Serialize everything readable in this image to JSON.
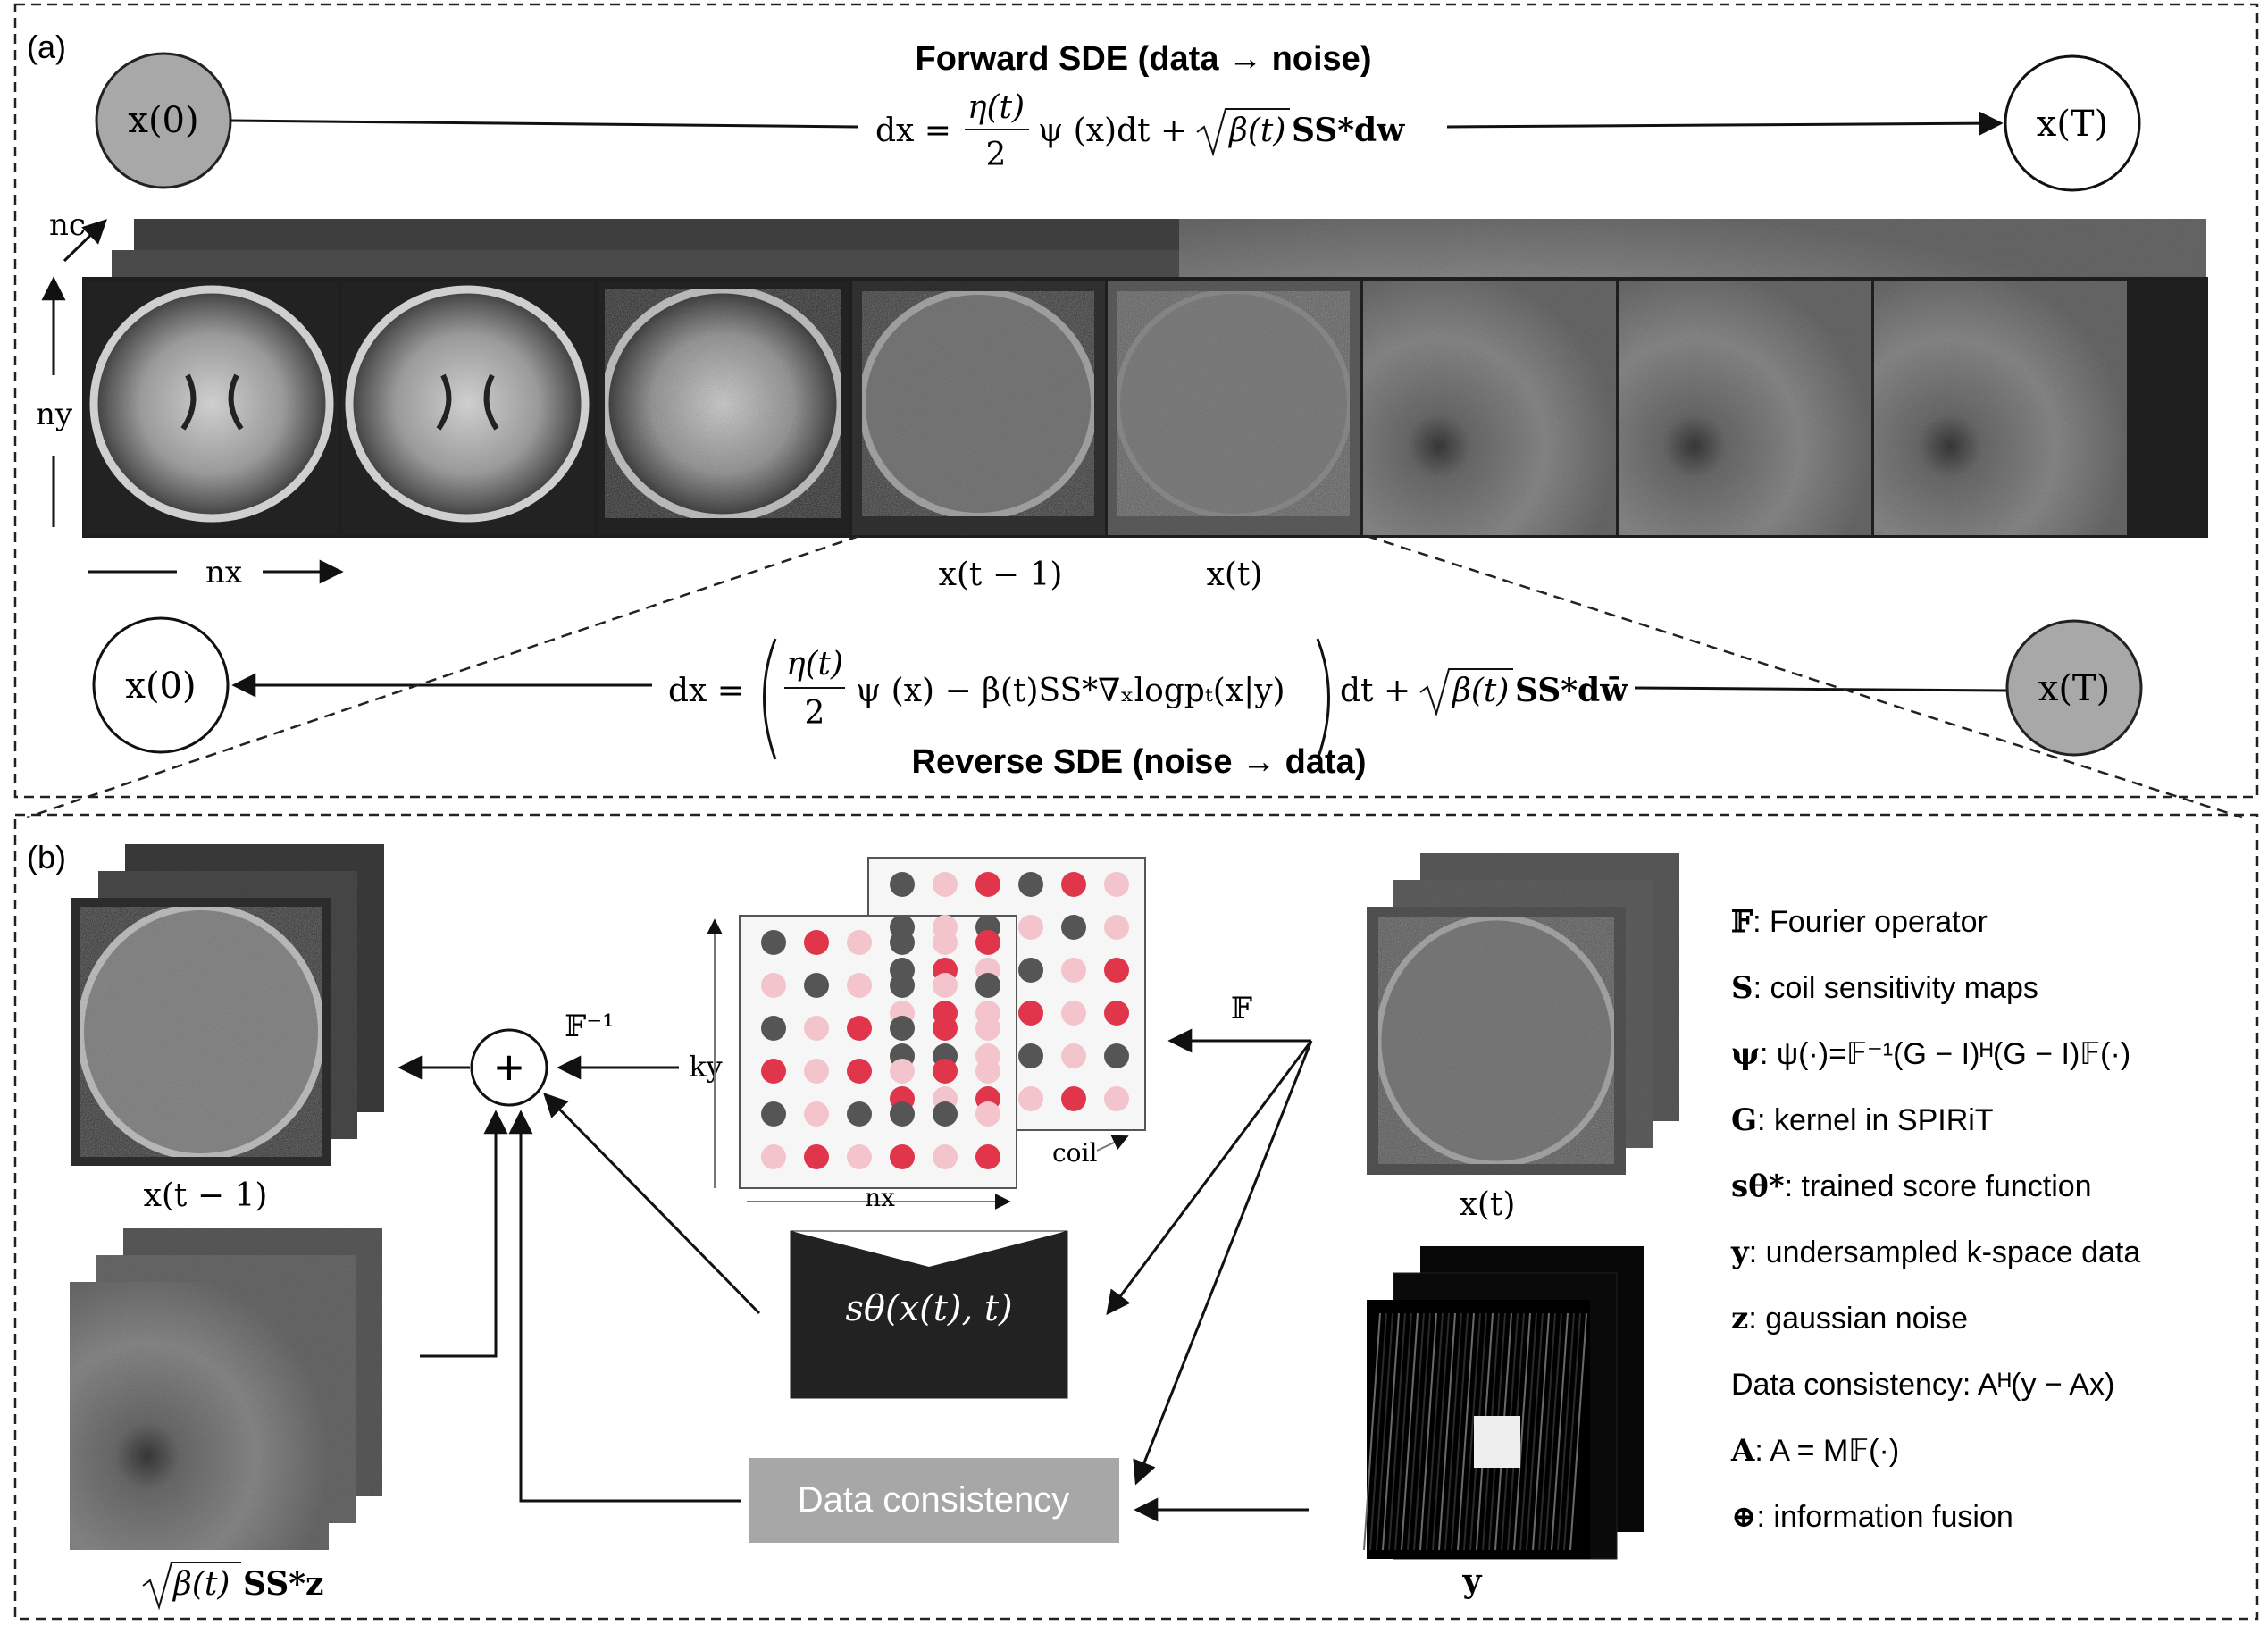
{
  "panel_a": {
    "label": "(a)",
    "forward_title": "Forward SDE (data → noise)",
    "reverse_title": "Reverse SDE (noise → data)",
    "start_node": "x(0)",
    "end_node": "x(T)",
    "forward_eq": {
      "lhs": "dx =",
      "frac_num": "η(t)",
      "frac_den": "2",
      "rest": "ψ (x)dt + ",
      "sqrt": "β(t)",
      "tail": "SS*dw"
    },
    "reverse_eq": {
      "lhs": "dx =",
      "frac_num": "η(t)",
      "frac_den": "2",
      "inner": "ψ (x) − β(t)SS*∇ₓlogpₜ(x|y)",
      "dt": "dt + ",
      "sqrt": "β(t)",
      "tail": "SS*dw̄"
    },
    "axis_nc": "nc",
    "axis_ny": "ny",
    "axis_nx": "nx",
    "label_prev": "x(t − 1)",
    "label_curr": "x(t)"
  },
  "panel_b": {
    "label": "(b)",
    "x_prev": "x(t − 1)",
    "x_curr": "x(t)",
    "noise_term_sqrt": "β(t)",
    "noise_term_tail": "SS*z",
    "y_label": "y",
    "inv_fourier": "𝔽⁻¹",
    "fourier": "𝔽",
    "ky": "ky",
    "nx": "nx",
    "coil": "coil",
    "network": "sθ(x(t), t)",
    "data_consistency": "Data consistency",
    "plus": "+"
  },
  "legend": [
    {
      "sym": "𝔽",
      "text": ": Fourier operator"
    },
    {
      "sym": "S",
      "text": ": coil sensitivity maps"
    },
    {
      "sym": "ψ",
      "text": ": ψ(·)=𝔽⁻¹(G − I)ᴴ(G − I)𝔽(·)"
    },
    {
      "sym": "G",
      "text": ": kernel in SPIRiT"
    },
    {
      "sym": "sθ*",
      "text": ": trained score function"
    },
    {
      "sym": "y",
      "text": ": undersampled k-space data"
    },
    {
      "sym": "z",
      "text": ": gaussian noise"
    },
    {
      "sym": "",
      "text": "Data consistency: Aᴴ(y − Ax)"
    },
    {
      "sym": "A",
      "text": ": A = M𝔽(·)"
    },
    {
      "sym": "⊕",
      "text": ": information fusion"
    }
  ],
  "colors": {
    "node_gray": "#a8a8a8",
    "network_fill": "#222222",
    "dc_fill": "#a7a7a7",
    "kspace_red": "#e0354a",
    "kspace_gray": "#555555",
    "kspace_pink": "#f3c4cb"
  }
}
